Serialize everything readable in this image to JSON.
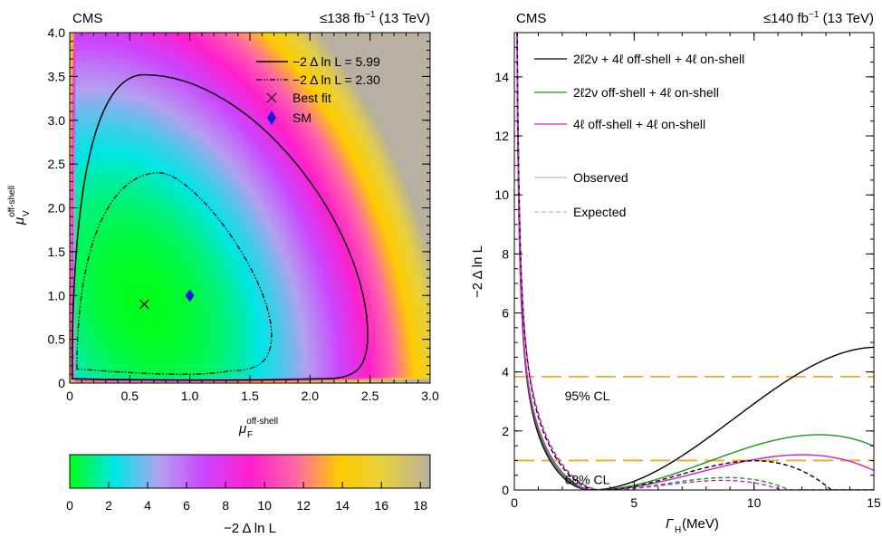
{
  "chart_data": [
    {
      "type": "heatmap",
      "header_left": "CMS",
      "header_right_pre": "≤138 fb",
      "header_right_sup": "−1",
      "header_right_post": " (13 TeV)",
      "xlabel_main": "μ",
      "xlabel_sup": "off-shell",
      "xlabel_sub": "F",
      "ylabel_main": "μ",
      "ylabel_sup": "off-shell",
      "ylabel_sub": "V",
      "xlim": [
        0,
        3.0
      ],
      "ylim": [
        0,
        4.0
      ],
      "xticks": [
        "0",
        "0.5",
        "1.0",
        "1.5",
        "2.0",
        "2.5",
        "3.0"
      ],
      "yticks": [
        "0",
        "0.5",
        "1.0",
        "1.5",
        "2.0",
        "2.5",
        "3.0",
        "3.5",
        "4.0"
      ],
      "legend": [
        {
          "label": "−2 Δ ln L = 5.99",
          "style": "solid"
        },
        {
          "label": "−2 Δ ln L = 2.30",
          "style": "dashdot"
        },
        {
          "label": "Best fit",
          "marker": "cross"
        },
        {
          "label": "SM",
          "marker": "diamond",
          "color": "#1a1adb"
        }
      ],
      "best_fit": {
        "x": 0.62,
        "y": 0.9
      },
      "sm": {
        "x": 1.0,
        "y": 1.0
      },
      "contour_5_99": {
        "x": [
          0.02,
          0.5,
          2.48,
          2.48
        ],
        "y": [
          0.05,
          3.52,
          0.55,
          0.05
        ]
      },
      "contour_2_30": {
        "x": [
          0.06,
          0.62,
          1.68,
          1.68
        ],
        "y": [
          0.16,
          2.4,
          0.55,
          0.14
        ]
      },
      "colorbar": {
        "label": "−2 Δ ln L",
        "range": [
          0,
          18.5
        ],
        "ticks": [
          "0",
          "2",
          "4",
          "6",
          "8",
          "10",
          "12",
          "14",
          "16",
          "18"
        ],
        "colors": [
          "#00ff1a",
          "#00e6e6",
          "#b4a0f0",
          "#cc44ff",
          "#ff1fcc",
          "#ff66aa",
          "#ffcc00",
          "#e6d040",
          "#b8b0a0"
        ]
      }
    },
    {
      "type": "line",
      "header_left": "CMS",
      "header_right_pre": "≤140 fb",
      "header_right_sup": "−1",
      "header_right_post": " (13 TeV)",
      "xlabel_main": "Γ",
      "xlabel_sub": "H",
      "xlabel_unit": " (MeV)",
      "ylabel": "−2 Δ ln L",
      "xlim": [
        0,
        15
      ],
      "ylim": [
        0,
        15.5
      ],
      "xticks": [
        "0",
        "5",
        "10",
        "15"
      ],
      "yticks": [
        "0",
        "2",
        "4",
        "6",
        "8",
        "10",
        "12",
        "14"
      ],
      "cl_lines": [
        {
          "y": 3.84,
          "label": "95% CL"
        },
        {
          "y": 1.0,
          "label": "68% CL"
        }
      ],
      "cl_color": "#f5a623",
      "legend_series": [
        {
          "label": "2ℓ2ν + 4ℓ off-shell + 4ℓ on-shell",
          "color": "#000000"
        },
        {
          "label": "2ℓ2ν off-shell + 4ℓ on-shell",
          "color": "#1a9a1a"
        },
        {
          "label": "4ℓ off-shell + 4ℓ on-shell",
          "color": "#cc22cc"
        }
      ],
      "legend_styles": [
        {
          "label": "Observed",
          "style": "solid"
        },
        {
          "label": "Expected",
          "style": "dashed"
        }
      ],
      "series": [
        {
          "color": "#000000",
          "style": "solid",
          "min_x": 3.2,
          "a": 0.102,
          "b": -0.38,
          "s": 0.6
        },
        {
          "color": "#1a9a1a",
          "style": "solid",
          "min_x": 3.3,
          "a": 0.0635,
          "b": -0.3,
          "s": 0.55
        },
        {
          "color": "#cc22cc",
          "style": "solid",
          "min_x": 3.4,
          "a": 0.0484,
          "b": -0.25,
          "s": 0.5
        },
        {
          "color": "#000000",
          "style": "dashed",
          "min_x": 3.6,
          "a": 0.0722,
          "b": -0.5,
          "s": 0.5
        },
        {
          "color": "#1a9a1a",
          "style": "dashed",
          "min_x": 3.7,
          "a": 0.0467,
          "b": -0.4,
          "s": 0.45
        },
        {
          "color": "#cc22cc",
          "style": "dashed",
          "min_x": 3.7,
          "a": 0.0392,
          "b": -0.35,
          "s": 0.45
        }
      ]
    }
  ]
}
